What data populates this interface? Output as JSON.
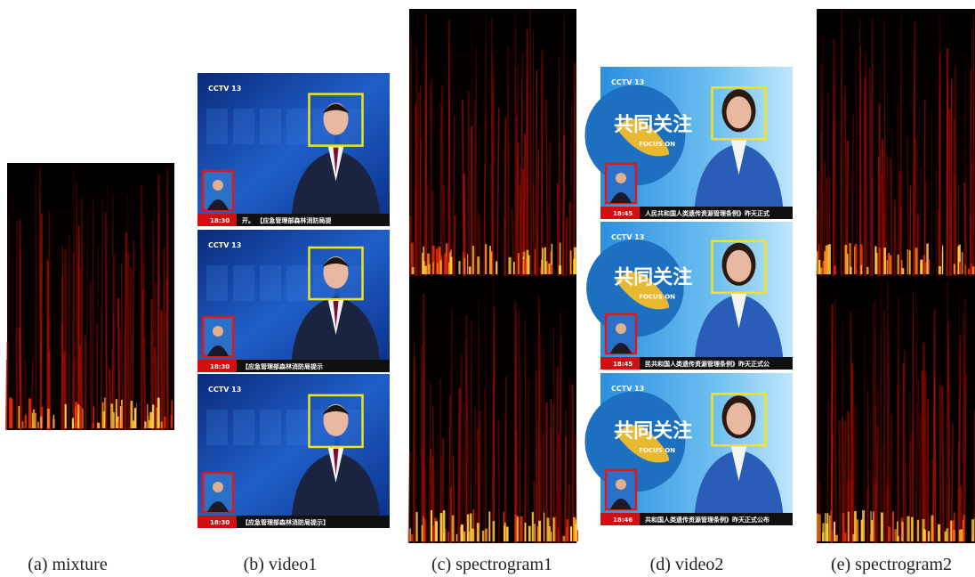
{
  "captions": [
    "(a) mixture",
    "(b) video1",
    "(c) spectrogram1",
    "(d) video2",
    "(e) spectrogram2"
  ],
  "video1": {
    "logo": "CCTV 13",
    "frames": [
      {
        "time": "18:30",
        "ticker": "开。 【应急管理部森林消防局提"
      },
      {
        "time": "18:30",
        "ticker": "【应急管理部森林消防局提示"
      },
      {
        "time": "18:30",
        "ticker": "【应急管理部森林消防局提示】"
      }
    ]
  },
  "video2": {
    "logo": "CCTV 13",
    "title": "共同关注",
    "subtitle": "FOCUS ON",
    "frames": [
      {
        "time": "18:45",
        "ticker": "人民共和国人类遗传资源管理条例》昨天正式"
      },
      {
        "time": "18:45",
        "ticker": "民共和国人类遗传资源管理条例》昨天正式公"
      },
      {
        "time": "18:46",
        "ticker": "共和国人类遗传资源管理条例》昨天正式公布"
      }
    ]
  }
}
